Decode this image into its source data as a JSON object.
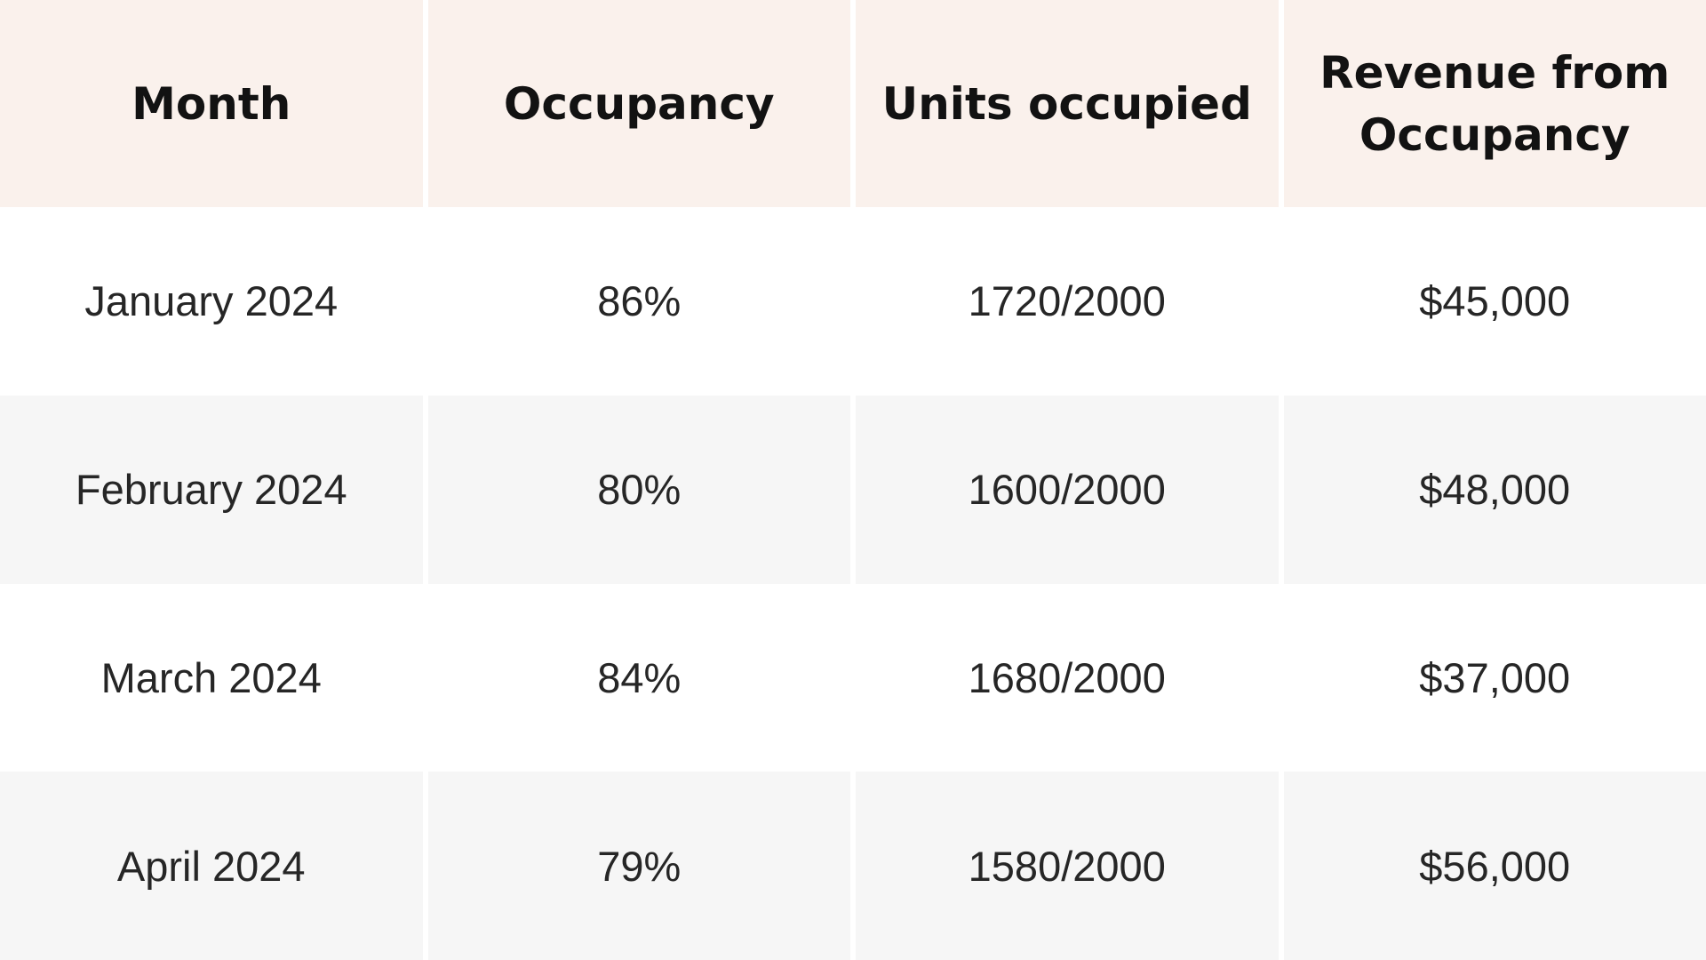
{
  "table": {
    "columns": [
      {
        "label": "Month"
      },
      {
        "label": "Occupancy"
      },
      {
        "label": "Units occupied"
      },
      {
        "label": "Revenue from Occupancy"
      }
    ],
    "rows": [
      {
        "month": "January 2024",
        "occupancy": "86%",
        "units": "1720/2000",
        "revenue": "$45,000"
      },
      {
        "month": "February 2024",
        "occupancy": "80%",
        "units": "1600/2000",
        "revenue": "$48,000"
      },
      {
        "month": "March 2024",
        "occupancy": "84%",
        "units": "1680/2000",
        "revenue": "$37,000"
      },
      {
        "month": "April 2024",
        "occupancy": "79%",
        "units": "1580/2000",
        "revenue": "$56,000"
      }
    ]
  },
  "colors": {
    "header_bg": "#faf1ec",
    "row_alt_bg": "#f6f6f6",
    "row_bg": "#ffffff",
    "divider": "#ffffff",
    "header_text": "#121212",
    "body_text": "#262626"
  },
  "chart_data": {
    "type": "table",
    "title": "",
    "columns": [
      "Month",
      "Occupancy",
      "Units occupied",
      "Revenue from Occupancy"
    ],
    "categories": [
      "January 2024",
      "February 2024",
      "March 2024",
      "April 2024"
    ],
    "series": [
      {
        "name": "Occupancy (%)",
        "values": [
          86,
          80,
          84,
          79
        ]
      },
      {
        "name": "Units occupied",
        "values": [
          1720,
          1600,
          1680,
          1580
        ]
      },
      {
        "name": "Total units",
        "values": [
          2000,
          2000,
          2000,
          2000
        ]
      },
      {
        "name": "Revenue from Occupancy ($)",
        "values": [
          45000,
          48000,
          37000,
          56000
        ]
      }
    ]
  }
}
